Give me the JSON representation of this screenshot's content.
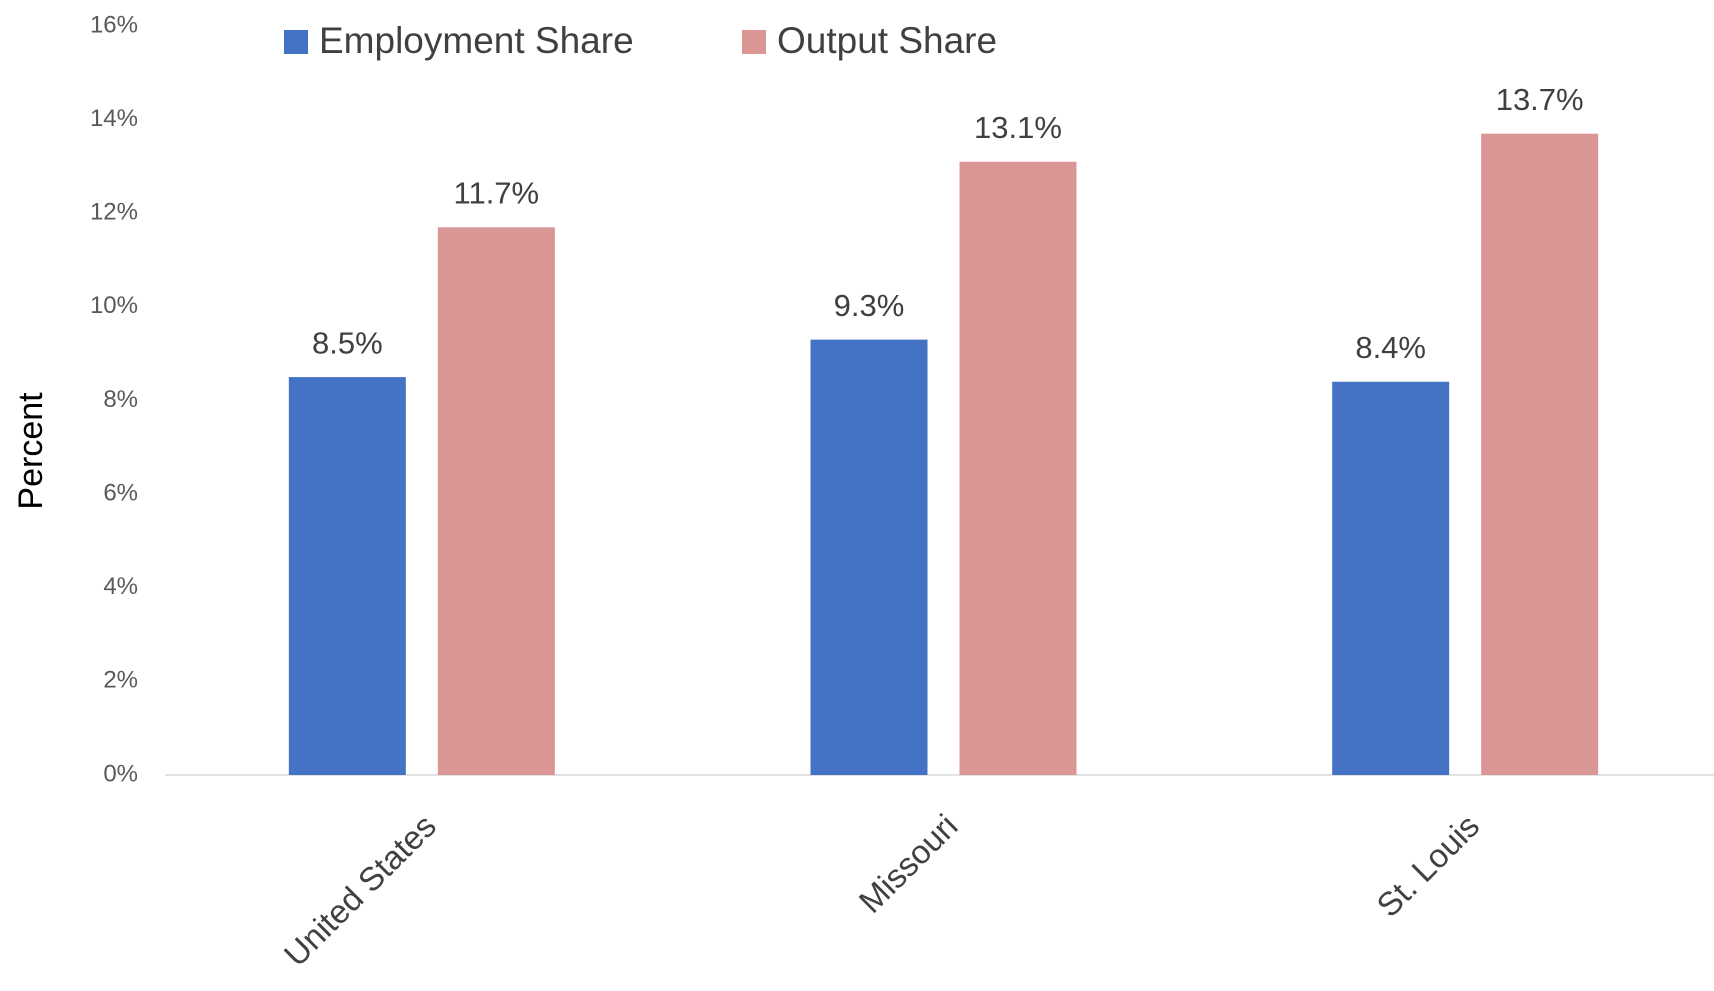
{
  "chart_data": {
    "type": "bar",
    "categories": [
      "United States",
      "Missouri",
      "St. Louis"
    ],
    "series": [
      {
        "name": "Employment Share",
        "color": "#4472c4",
        "values": [
          8.5,
          9.3,
          8.4
        ],
        "value_labels": [
          "8.5%",
          "9.3%",
          "8.4%"
        ]
      },
      {
        "name": "Output Share",
        "color": "#da9694",
        "values": [
          11.7,
          13.1,
          13.7
        ],
        "value_labels": [
          "11.7%",
          "13.1%",
          "13.7%"
        ]
      }
    ],
    "y_label": "Percent",
    "ylim": [
      0,
      16
    ],
    "yticks": [
      {
        "value": 0,
        "label": "0%"
      },
      {
        "value": 2,
        "label": "2%"
      },
      {
        "value": 4,
        "label": "4%"
      },
      {
        "value": 6,
        "label": "6%"
      },
      {
        "value": 8,
        "label": "8%"
      },
      {
        "value": 10,
        "label": "10%"
      },
      {
        "value": 12,
        "label": "12%"
      },
      {
        "value": 14,
        "label": "14%"
      },
      {
        "value": 16,
        "label": "16%"
      }
    ],
    "grid": false,
    "legend": "top"
  }
}
